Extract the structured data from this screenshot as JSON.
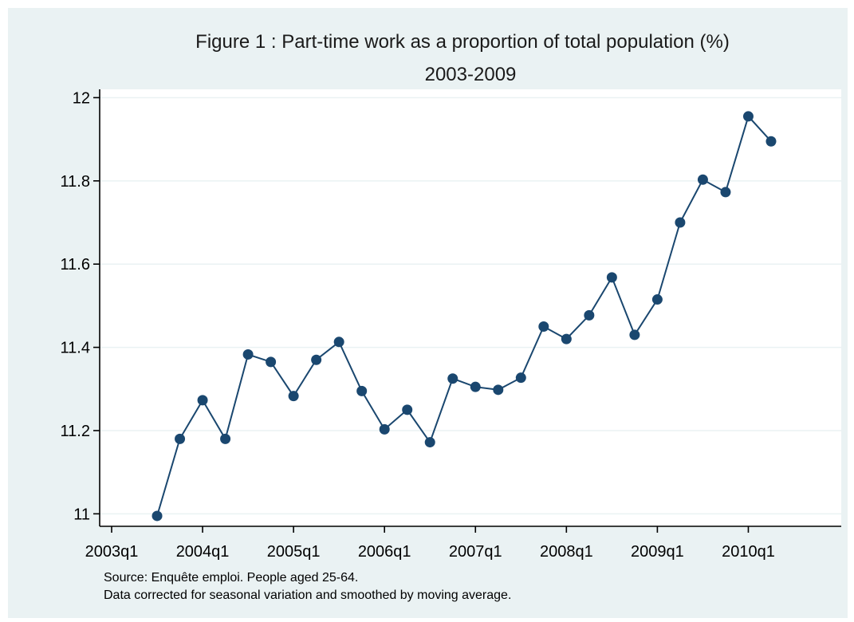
{
  "chart_data": {
    "type": "line",
    "title": "Figure 1 : Part-time work as a proportion of total population (%)",
    "subtitle": "2003-2009",
    "xlabel": "",
    "ylabel": "",
    "x_ticks": [
      "2003q1",
      "2004q1",
      "2005q1",
      "2006q1",
      "2007q1",
      "2008q1",
      "2009q1",
      "2010q1"
    ],
    "y_ticks": [
      "11",
      "11.2",
      "11.4",
      "11.6",
      "11.8",
      "12"
    ],
    "ylim": [
      10.97,
      12.02
    ],
    "xlim": [
      "2003q1",
      "2011q1"
    ],
    "grid": true,
    "legend": "none",
    "color": "#1a476f",
    "series": [
      {
        "x": [
          "2003q3",
          "2003q4",
          "2004q1",
          "2004q2",
          "2004q3",
          "2004q4",
          "2005q1",
          "2005q2",
          "2005q3",
          "2005q4",
          "2006q1",
          "2006q2",
          "2006q3",
          "2006q4",
          "2007q1",
          "2007q2",
          "2007q3",
          "2007q4",
          "2008q1",
          "2008q2",
          "2008q3",
          "2008q4",
          "2009q1",
          "2009q2",
          "2009q3",
          "2009q4",
          "2010q1",
          "2010q2"
        ],
        "values": [
          10.995,
          11.18,
          11.273,
          11.18,
          11.383,
          11.365,
          11.283,
          11.37,
          11.413,
          11.295,
          11.203,
          11.25,
          11.172,
          11.325,
          11.305,
          11.298,
          11.327,
          11.45,
          11.42,
          11.477,
          11.568,
          11.43,
          11.515,
          11.7,
          11.803,
          11.773,
          11.955,
          11.895
        ]
      }
    ],
    "notes": [
      "Source: Enquête emploi. People aged 25-64.",
      "Data corrected for seasonal variation and smoothed by moving average."
    ]
  }
}
